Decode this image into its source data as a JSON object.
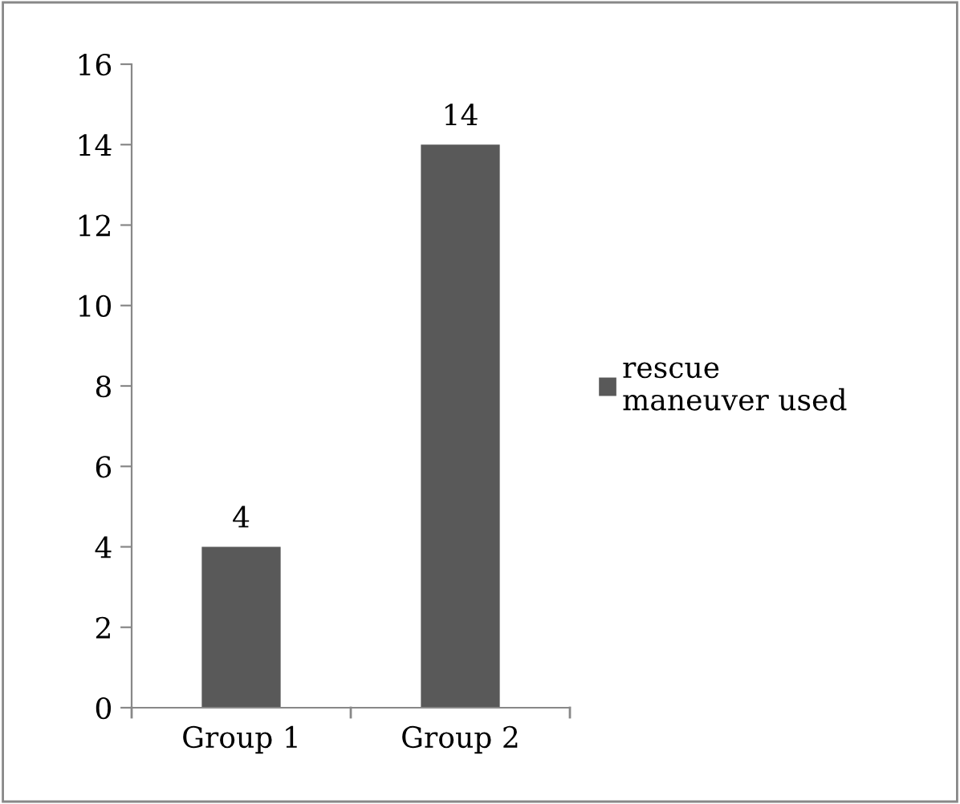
{
  "chart_data": {
    "type": "bar",
    "categories": [
      "Group 1",
      "Group 2"
    ],
    "series": [
      {
        "name": "rescue maneuver used",
        "color": "#595959",
        "values": [
          4,
          14
        ]
      }
    ],
    "ylim": [
      0,
      16
    ],
    "yticks": [
      0,
      2,
      4,
      6,
      8,
      10,
      12,
      14,
      16
    ],
    "grid": false,
    "legend": "right",
    "data_labels": true
  }
}
